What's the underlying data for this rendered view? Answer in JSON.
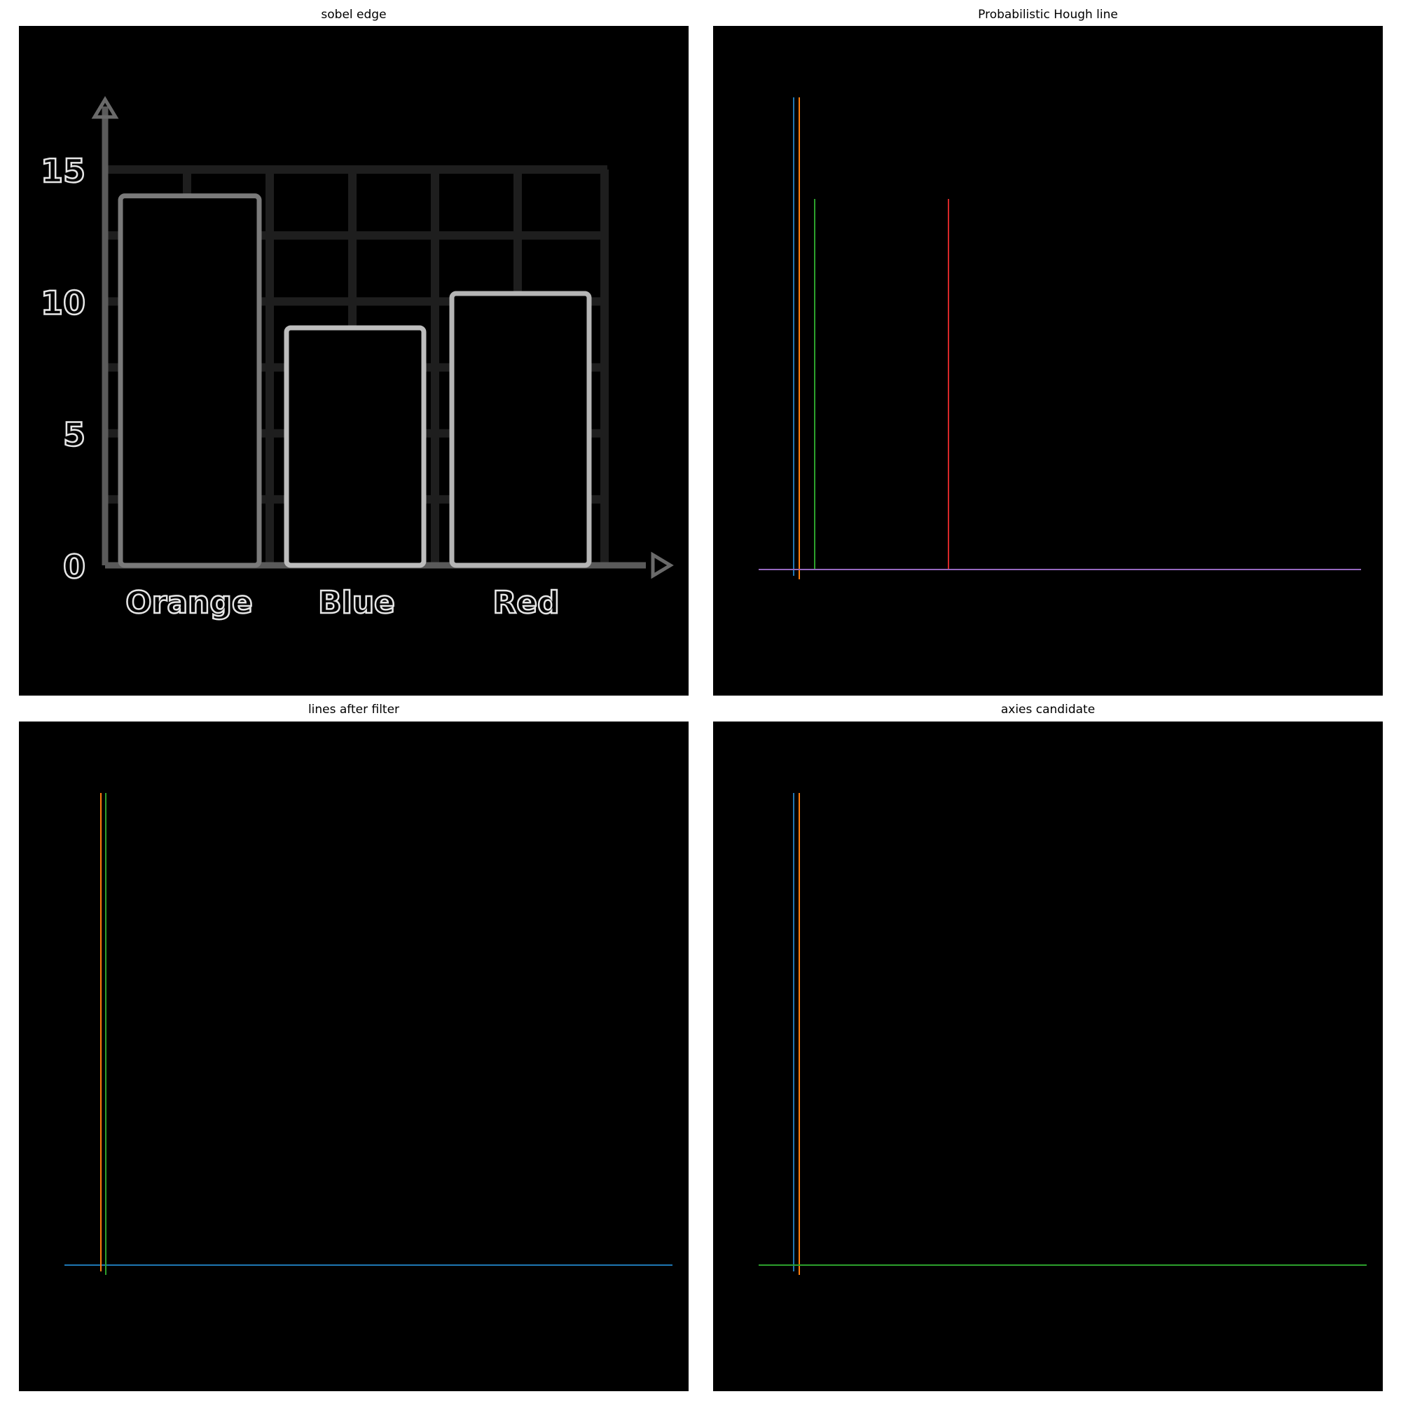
{
  "panels": {
    "sobel": {
      "title": "sobel edge",
      "chart_data": {
        "type": "bar",
        "categories": [
          "Orange",
          "Blue",
          "Red"
        ],
        "values": [
          14,
          9,
          10.3
        ],
        "ylim": [
          0,
          15
        ],
        "yticks": [
          "0",
          "5",
          "10",
          "15"
        ],
        "grid": true
      }
    },
    "hough": {
      "title": "Probabilistic Hough line",
      "lines": [
        {
          "color": "#1f77b4"
        },
        {
          "color": "#ff7f0e"
        },
        {
          "color": "#2ca02c"
        },
        {
          "color": "#d62728"
        },
        {
          "color": "#9467bd"
        }
      ]
    },
    "filtered": {
      "title": "lines after filter",
      "lines": [
        {
          "color": "#1f77b4"
        },
        {
          "color": "#ff7f0e"
        },
        {
          "color": "#2ca02c"
        }
      ]
    },
    "axes": {
      "title": "axies candidate",
      "lines": [
        {
          "color": "#1f77b4"
        },
        {
          "color": "#ff7f0e"
        },
        {
          "color": "#2ca02c"
        }
      ]
    }
  }
}
